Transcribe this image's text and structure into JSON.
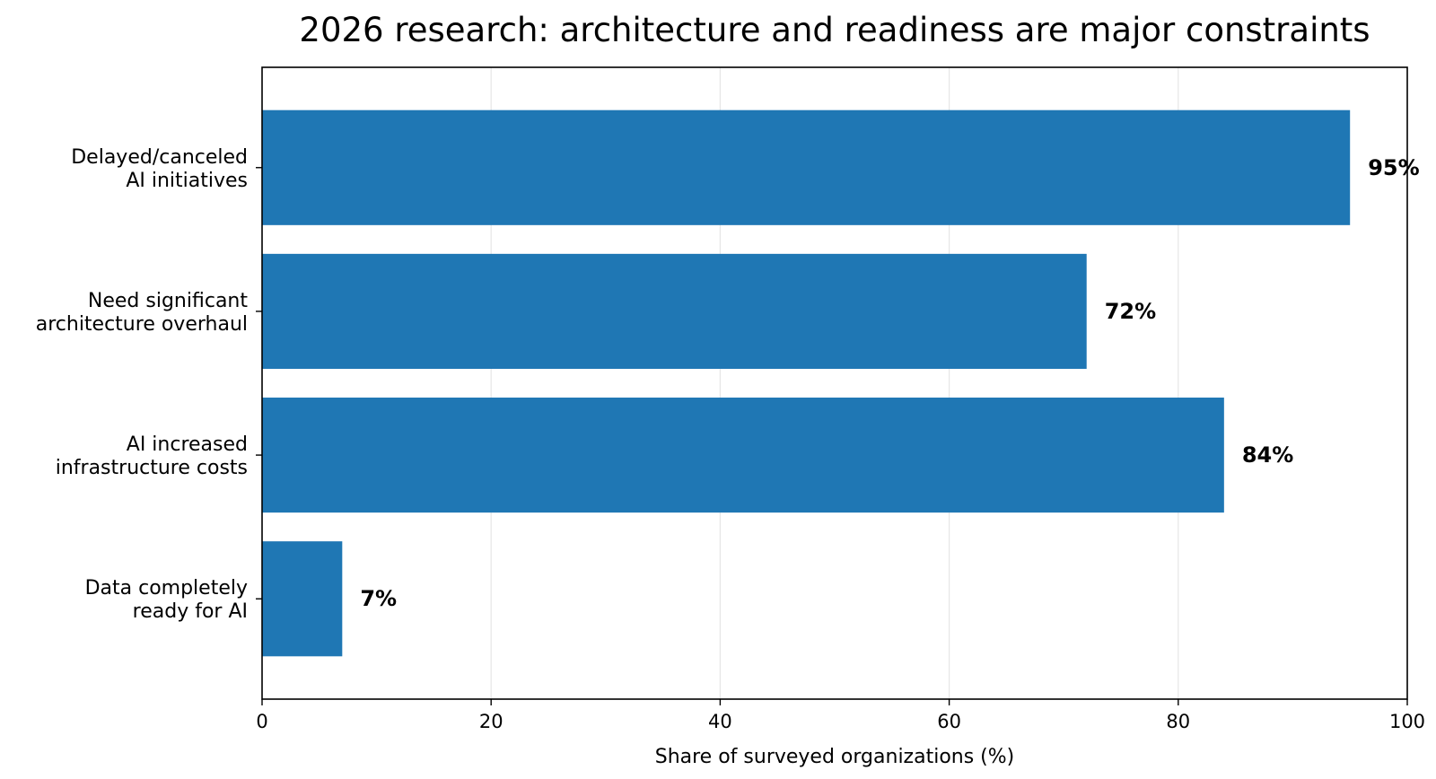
{
  "chart_data": {
    "type": "bar",
    "orientation": "horizontal",
    "title": "2026 research: architecture and readiness are major constraints",
    "xlabel": "Share of surveyed organizations (%)",
    "ylabel": "",
    "categories": [
      [
        "Delayed/canceled",
        "AI initiatives"
      ],
      [
        "Need significant",
        "architecture overhaul"
      ],
      [
        "AI increased",
        "infrastructure costs"
      ],
      [
        "Data completely",
        "ready for AI"
      ]
    ],
    "values": [
      95,
      72,
      84,
      7
    ],
    "value_labels": [
      "95%",
      "72%",
      "84%",
      "7%"
    ],
    "xlim": [
      0,
      100
    ],
    "xticks": [
      0,
      20,
      40,
      60,
      80,
      100
    ],
    "xtick_labels": [
      "0",
      "20",
      "40",
      "60",
      "80",
      "100"
    ],
    "grid": "vertical",
    "bar_color": "#1f77b4"
  }
}
